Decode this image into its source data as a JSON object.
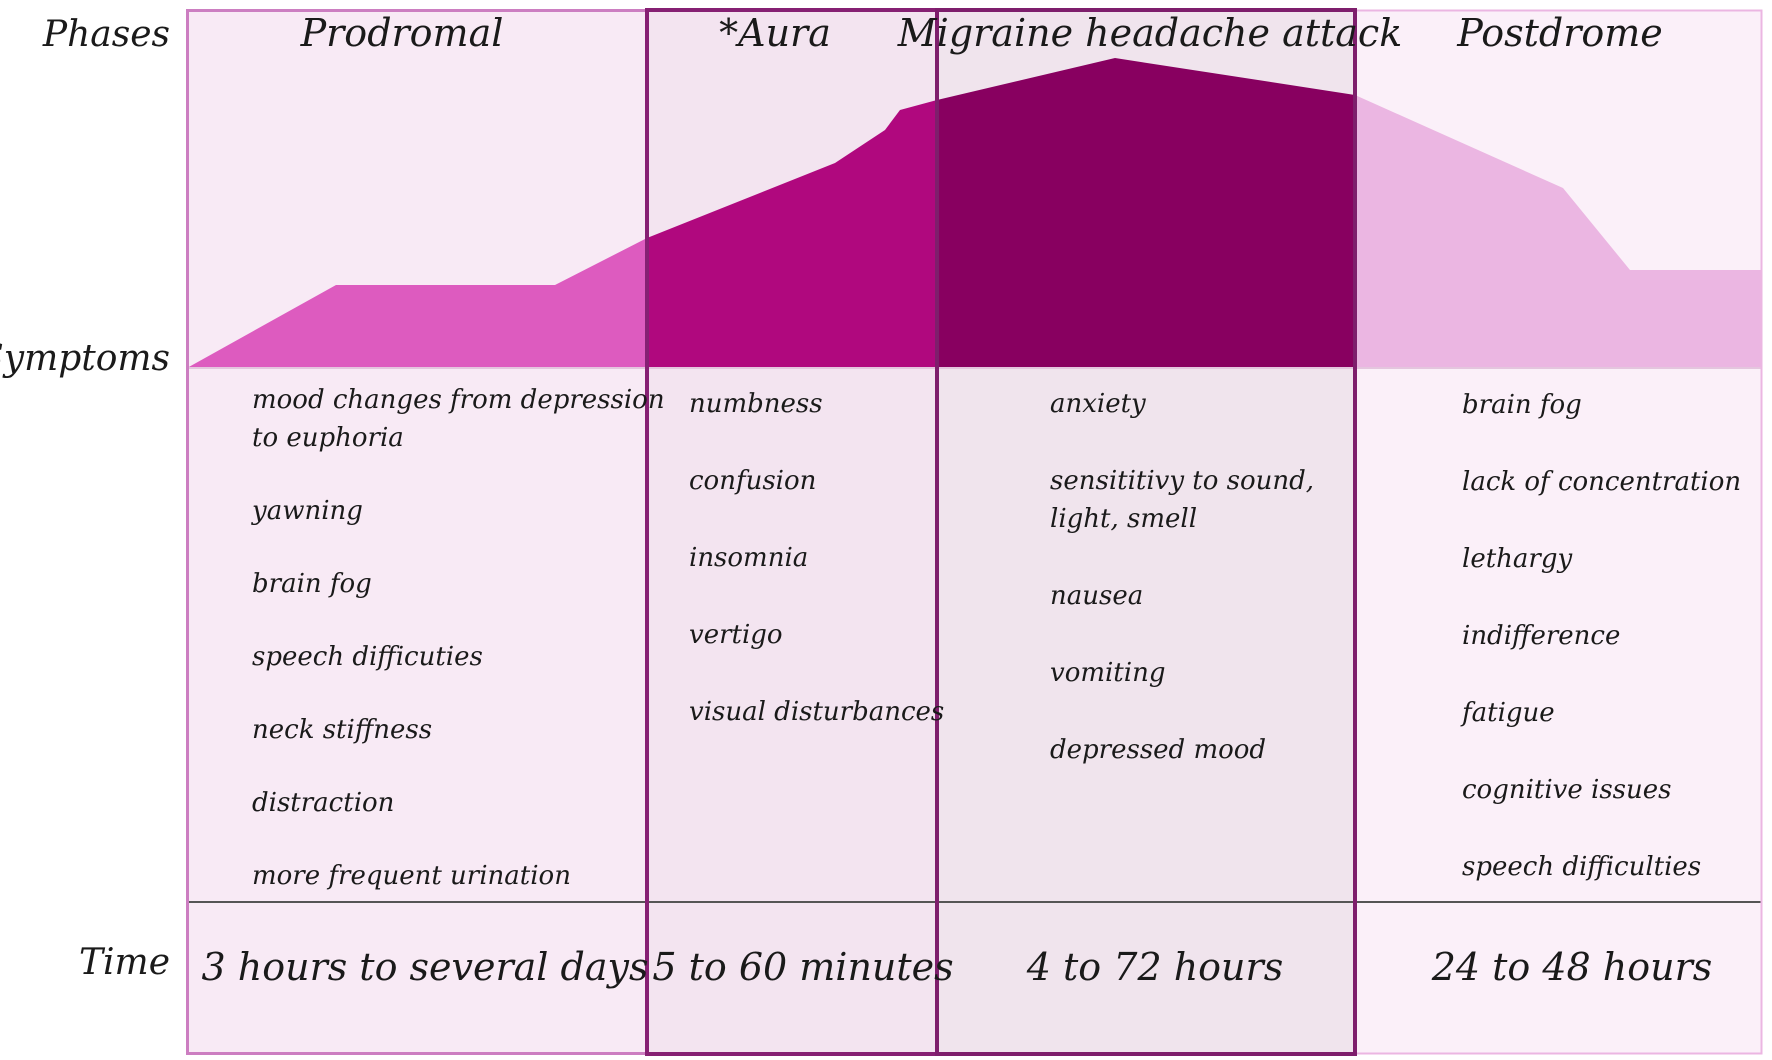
{
  "row_labels": {
    "phases": "Phases",
    "symptoms": "Symptoms",
    "time": "Time"
  },
  "phases": [
    {
      "title": "Prodromal",
      "symptoms": [
        [
          "mood changes from depression",
          "to euphoria"
        ],
        [
          "yawning"
        ],
        [
          "brain fog"
        ],
        [
          "speech difficuties"
        ],
        [
          "neck stiffness"
        ],
        [
          "distraction"
        ],
        [
          "more frequent urination"
        ]
      ],
      "time": "3 hours to several days"
    },
    {
      "title": "*Aura",
      "symptoms": [
        [
          "numbness"
        ],
        [
          "confusion"
        ],
        [
          "insomnia"
        ],
        [
          "vertigo"
        ],
        [
          "visual disturbances"
        ]
      ],
      "time": "5 to 60 minutes"
    },
    {
      "title": "Migraine headache attack",
      "symptoms": [
        [
          "anxiety"
        ],
        [
          "sensititivy to sound,",
          "light, smell"
        ],
        [
          "nausea"
        ],
        [
          "vomiting"
        ],
        [
          "depressed mood"
        ]
      ],
      "time": "4 to 72 hours"
    },
    {
      "title": "Postdrome",
      "symptoms": [
        [
          "brain fog"
        ],
        [
          "lack of concentration"
        ],
        [
          "lethargy"
        ],
        [
          "indifference"
        ],
        [
          "fatigue"
        ],
        [
          "cognitive issues"
        ],
        [
          "speech difficulties"
        ]
      ],
      "time": "24 to 48 hours"
    }
  ],
  "colors": {
    "prodromal_area": "#dd5bbf",
    "aura_area": "#b0087e",
    "attack_area": "#880060",
    "postdrome_area": "#ebb6e2",
    "prodromal_bg": "#f8eaf5",
    "aura_bg": "#f3e4f0",
    "attack_bg": "#f0e4ed",
    "postdrome_bg": "#fbf0f9",
    "border_light": "#cc7ec1",
    "border_dark": "#7e1e6c"
  }
}
